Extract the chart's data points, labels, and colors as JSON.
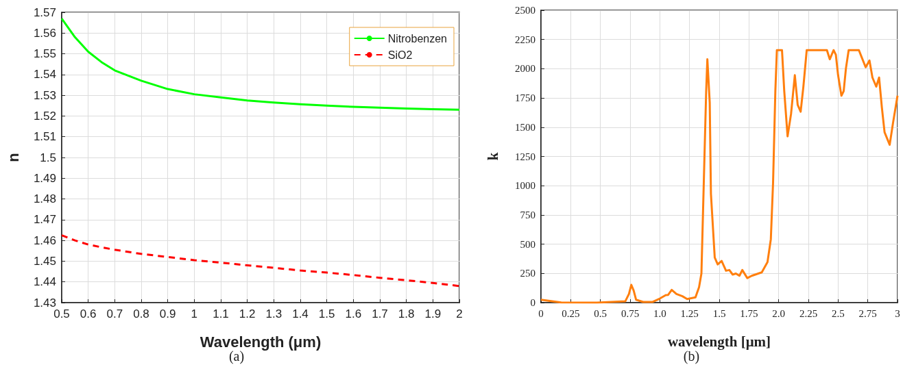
{
  "chart_data": [
    {
      "type": "line",
      "xlabel": "Wavelength (μm)",
      "ylabel": "n",
      "annotations": [
        "(a)"
      ],
      "xlim": [
        0.5,
        2
      ],
      "xticks": [
        0.5,
        0.6,
        0.7,
        0.8,
        0.9,
        1,
        1.1,
        1.2,
        1.3,
        1.4,
        1.5,
        1.6,
        1.7,
        1.8,
        1.9,
        2
      ],
      "ylim": [
        1.43,
        1.57
      ],
      "yticks": [
        1.43,
        1.44,
        1.45,
        1.46,
        1.47,
        1.48,
        1.49,
        1.5,
        1.51,
        1.52,
        1.53,
        1.54,
        1.55,
        1.56,
        1.57
      ],
      "grid": true,
      "legend": "top right",
      "marker": "none",
      "x": [
        0.5,
        0.55,
        0.6,
        0.65,
        0.7,
        0.8,
        0.9,
        1,
        1.1,
        1.2,
        1.3,
        1.4,
        1.5,
        1.6,
        1.7,
        1.8,
        1.9,
        2
      ],
      "series": [
        {
          "name": "Nitrobenzen",
          "color": "#00ff00",
          "line_style": "solid",
          "values": [
            1.567,
            1.558,
            1.551,
            1.546,
            1.542,
            1.537,
            1.533,
            1.5305,
            1.529,
            1.5275,
            1.5265,
            1.5257,
            1.525,
            1.5244,
            1.524,
            1.5236,
            1.5233,
            1.523
          ]
        },
        {
          "name": "SiO2",
          "color": "#ff0000",
          "line_style": "dashed",
          "values": [
            1.4625,
            1.46,
            1.458,
            1.4567,
            1.4555,
            1.4535,
            1.452,
            1.4505,
            1.4493,
            1.448,
            1.4468,
            1.4455,
            1.4445,
            1.4433,
            1.442,
            1.4408,
            1.4395,
            1.438
          ]
        }
      ]
    },
    {
      "type": "line",
      "xlabel": "wavelength [μm]",
      "ylabel": "k",
      "annotations": [
        "(b)"
      ],
      "xlim": [
        0,
        3
      ],
      "xticks": [
        0,
        0.25,
        0.5,
        0.75,
        {
          "value": 1,
          "label": "1.0"
        },
        1.25,
        1.5,
        1.75,
        {
          "value": 2,
          "label": "2.0"
        },
        2.25,
        2.5,
        2.75,
        3
      ],
      "ylim": [
        0,
        2500
      ],
      "yticks": [
        0,
        250,
        500,
        750,
        1000,
        1250,
        1500,
        1750,
        2000,
        2250,
        2500
      ],
      "grid": true,
      "marker": "none",
      "x": [
        0,
        0.17,
        0.47,
        0.71,
        0.74,
        0.76,
        0.78,
        0.8,
        0.86,
        0.94,
        1,
        1.05,
        1.07,
        1.1,
        1.14,
        1.19,
        1.23,
        1.3,
        1.33,
        1.35,
        1.37,
        1.39,
        1.4,
        1.42,
        1.43,
        1.462,
        1.487,
        1.52,
        1.557,
        1.585,
        1.613,
        1.64,
        1.67,
        1.694,
        1.736,
        1.774,
        1.858,
        1.906,
        1.934,
        1.953,
        1.972,
        1.985,
        2.028,
        2.047,
        2.075,
        2.104,
        2.136,
        2.16,
        2.185,
        2.208,
        2.236,
        2.406,
        2.43,
        2.462,
        2.481,
        2.5,
        2.528,
        2.547,
        2.566,
        2.589,
        2.675,
        2.694,
        2.732,
        2.764,
        2.789,
        2.821,
        2.845,
        2.868,
        2.891,
        2.934,
        2.962,
        3
      ],
      "series": [
        {
          "color": "#ff7f0e",
          "line_style": "solid",
          "values": [
            25,
            2,
            0,
            12,
            74,
            152,
            103,
            25,
            6,
            6,
            35,
            64,
            66,
            109,
            74,
            55,
            31,
            45,
            132,
            249,
            1029,
            1808,
            2081,
            1710,
            931,
            386,
            327,
            357,
            273,
            279,
            240,
            249,
            230,
            279,
            210,
            230,
            259,
            347,
            542,
            1029,
            1808,
            2159,
            2159,
            1808,
            1422,
            1613,
            1945,
            1691,
            1633,
            1847,
            2159,
            2159,
            2081,
            2159,
            2120,
            1945,
            1769,
            1808,
            2003,
            2159,
            2159,
            2110,
            2013,
            2071,
            1925,
            1847,
            1925,
            1672,
            1457,
            1350,
            1535,
            1769
          ]
        }
      ]
    }
  ]
}
